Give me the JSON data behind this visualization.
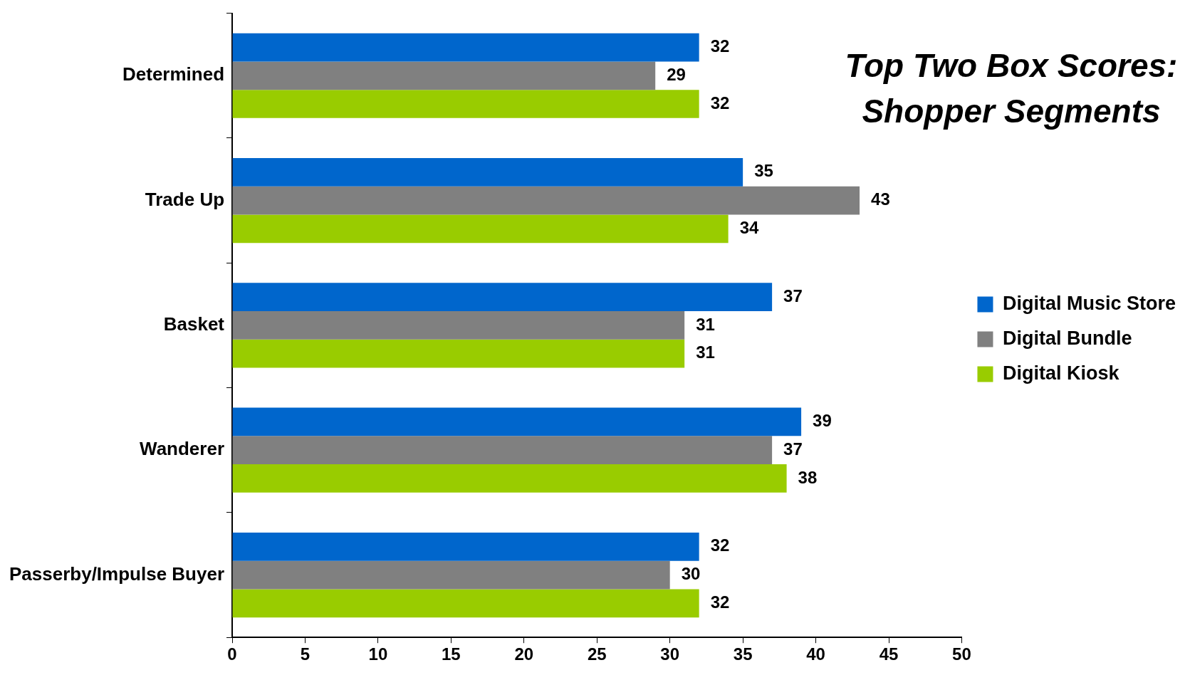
{
  "chart_data": {
    "type": "bar",
    "orientation": "horizontal",
    "title": "Top Two Box Scores:\nShopper Segments",
    "categories": [
      "Determined",
      "Trade Up",
      "Basket",
      "Wanderer",
      "Passerby/Impulse Buyer"
    ],
    "series": [
      {
        "name": "Digital Music Store",
        "color": "#0066cc",
        "values": [
          32,
          35,
          37,
          39,
          32
        ]
      },
      {
        "name": "Digital Bundle",
        "color": "#808080",
        "values": [
          29,
          43,
          31,
          37,
          30
        ]
      },
      {
        "name": "Digital Kiosk",
        "color": "#99cc00",
        "values": [
          32,
          34,
          31,
          38,
          32
        ]
      }
    ],
    "xlim": [
      0,
      50
    ],
    "xticks": [
      0,
      5,
      10,
      15,
      20,
      25,
      30,
      35,
      40,
      45,
      50
    ],
    "grid": false,
    "legend": "right",
    "data_labels": true
  }
}
